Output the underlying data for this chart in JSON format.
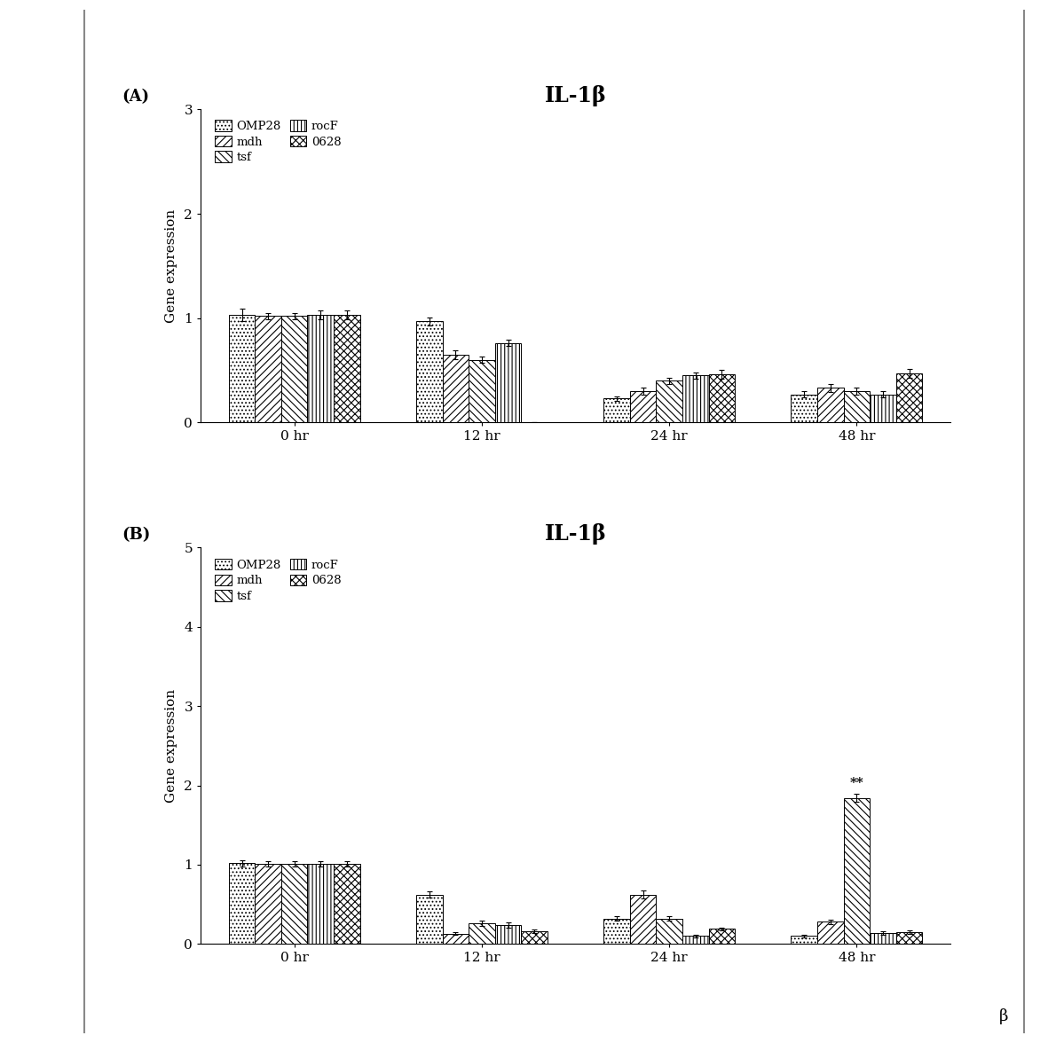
{
  "title": "IL-1β",
  "ylabel": "Gene expression",
  "time_labels": [
    "0 hr",
    "12 hr",
    "24 hr",
    "48 hr"
  ],
  "legend_labels": [
    "OMP28",
    "mdh",
    "tsf",
    "rocF",
    "0628"
  ],
  "panel_A": {
    "label": "(A)",
    "ylim": [
      0,
      3
    ],
    "yticks": [
      0,
      1,
      2,
      3
    ],
    "data": {
      "OMP28": [
        1.03,
        0.97,
        0.23,
        0.27
      ],
      "mdh": [
        1.02,
        0.65,
        0.3,
        0.33
      ],
      "tsf": [
        1.02,
        0.6,
        0.4,
        0.3
      ],
      "rocF": [
        1.03,
        0.76,
        0.45,
        0.27
      ],
      "0628": [
        1.03,
        0.0,
        0.46,
        0.47
      ]
    },
    "errors": {
      "OMP28": [
        0.06,
        0.04,
        0.02,
        0.03
      ],
      "mdh": [
        0.03,
        0.04,
        0.03,
        0.04
      ],
      "tsf": [
        0.03,
        0.03,
        0.03,
        0.03
      ],
      "rocF": [
        0.04,
        0.03,
        0.03,
        0.03
      ],
      "0628": [
        0.04,
        0.0,
        0.04,
        0.04
      ]
    },
    "annotation": null
  },
  "panel_B": {
    "label": "(B)",
    "ylim": [
      0,
      5
    ],
    "yticks": [
      0,
      1,
      2,
      3,
      4,
      5
    ],
    "data": {
      "OMP28": [
        1.02,
        0.62,
        0.32,
        0.1
      ],
      "mdh": [
        1.01,
        0.13,
        0.62,
        0.28
      ],
      "tsf": [
        1.01,
        0.26,
        0.32,
        1.84
      ],
      "rocF": [
        1.01,
        0.24,
        0.1,
        0.14
      ],
      "0628": [
        1.01,
        0.16,
        0.19,
        0.15
      ]
    },
    "errors": {
      "OMP28": [
        0.04,
        0.04,
        0.03,
        0.02
      ],
      "mdh": [
        0.03,
        0.02,
        0.05,
        0.03
      ],
      "tsf": [
        0.03,
        0.03,
        0.03,
        0.05
      ],
      "rocF": [
        0.03,
        0.03,
        0.02,
        0.02
      ],
      "0628": [
        0.03,
        0.02,
        0.02,
        0.02
      ]
    },
    "annotation": {
      "bar_idx": 2,
      "time_idx": 3,
      "text": "**"
    }
  },
  "bar_width": 0.14,
  "group_positions": [
    0.4,
    1.4,
    2.4,
    3.4
  ],
  "hatch_patterns": [
    "....",
    "////",
    "\\\\\\\\",
    "||||",
    "xxxx"
  ],
  "edge_color": "#000000",
  "face_colors": [
    "white",
    "white",
    "white",
    "white",
    "white"
  ],
  "figsize": [
    11.9,
    11.76
  ],
  "dpi": 100,
  "border_color": "#555555",
  "page_bg": "#f0f0f0"
}
